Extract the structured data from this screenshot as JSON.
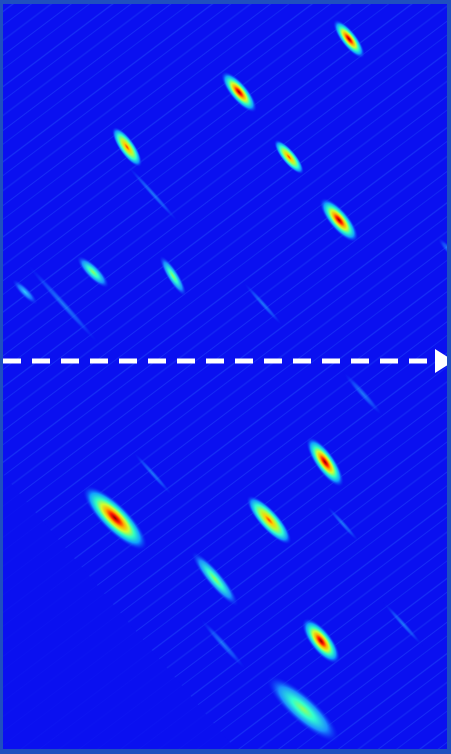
{
  "heatmap": {
    "palette": "jet",
    "background_color": "#0a10f0",
    "arrow_color": "#ffffff",
    "arrow_direction": "right",
    "arrow_style": "dashed"
  }
}
